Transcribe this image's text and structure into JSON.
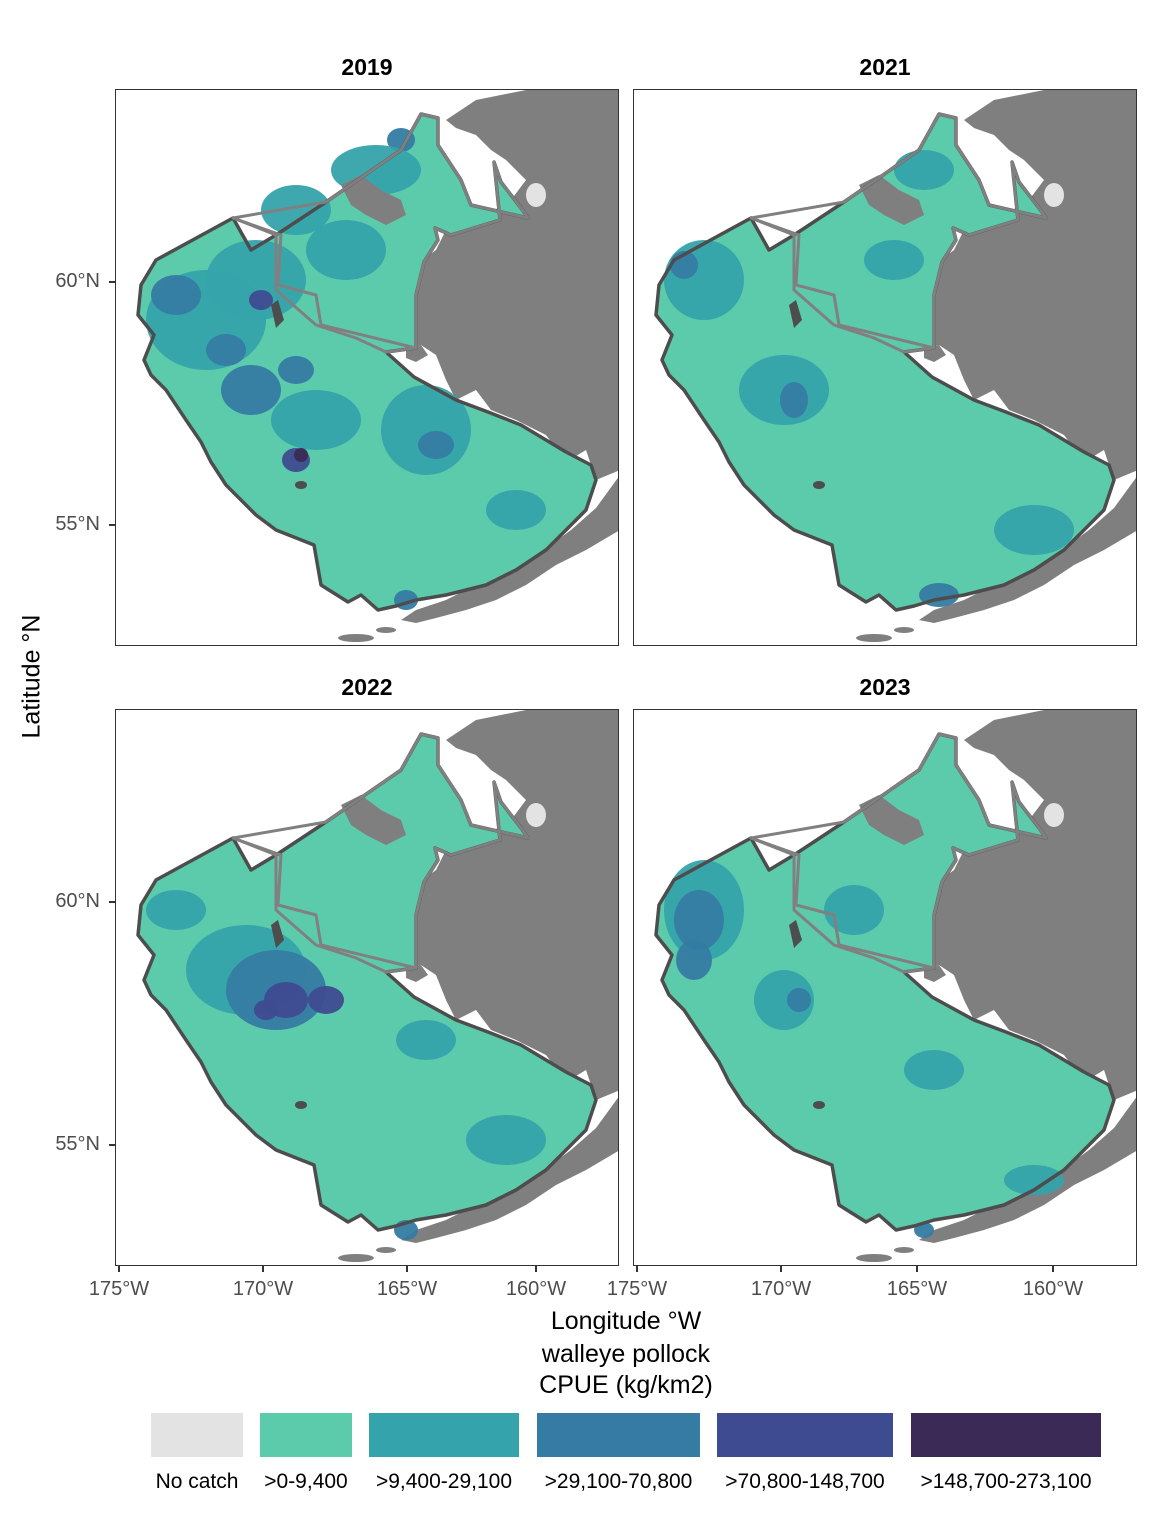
{
  "panels": [
    {
      "title": "2019"
    },
    {
      "title": "2021"
    },
    {
      "title": "2022"
    },
    {
      "title": "2023"
    }
  ],
  "axes": {
    "y_title": "Latitude °N",
    "x_title": "Longitude °W",
    "y_ticks": [
      "60°N",
      "55°N"
    ],
    "x_ticks": [
      "175°W",
      "170°W",
      "165°W",
      "160°W"
    ]
  },
  "legend": {
    "title_line1": "walleye pollock",
    "title_line2": "CPUE (kg/km2)",
    "items": [
      {
        "label": "No catch",
        "color": "#e3e3e3"
      },
      {
        "label": ">0-9,400",
        "color": "#5ccbab"
      },
      {
        "label": ">9,400-29,100",
        "color": "#35a3ab"
      },
      {
        "label": ">29,100-70,800",
        "color": "#357ba3"
      },
      {
        "label": ">70,800-148,700",
        "color": "#3f4b91"
      },
      {
        "label": ">148,700-273,100",
        "color": "#3b2a55"
      }
    ]
  },
  "colors": {
    "land": "#7f7f7f",
    "boundary_outer": "#4d4d4d",
    "boundary_inner": "#808080"
  }
}
